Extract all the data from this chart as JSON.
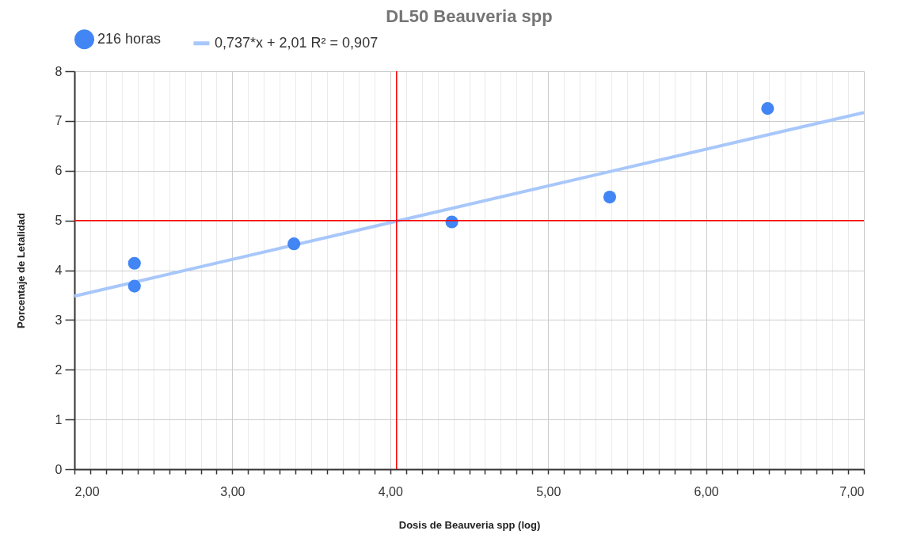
{
  "chart_data": {
    "type": "scatter",
    "title": "DL50 Beauveria spp",
    "xlabel": "Dosis de Beauveria spp (log)",
    "ylabel": "Porcentaje de Letalidad",
    "series": [
      {
        "name": "216 horas",
        "color": "#4285f4",
        "marker": "circle",
        "x": [
          2.38,
          2.38,
          3.39,
          4.39,
          5.39,
          6.39
        ],
        "values": [
          4.14,
          3.68,
          4.53,
          4.97,
          5.47,
          7.25
        ]
      },
      {
        "name": "0,737*x + 2,01 R² = 0,907",
        "type": "line",
        "color": "#a8c7fa",
        "x": [
          2,
          7
        ],
        "values": [
          3.48,
          7.17
        ]
      }
    ],
    "ref_lines": [
      {
        "axis": "y",
        "value": 5,
        "color": "#ff0000"
      },
      {
        "axis": "x",
        "value": 4.04,
        "color": "#ff0000"
      }
    ],
    "xlim": [
      2,
      7
    ],
    "ylim": [
      0,
      8
    ],
    "xticks": [
      {
        "value": 2,
        "label": "2,00"
      },
      {
        "value": 2.1,
        "label": null
      },
      {
        "value": 2.2,
        "label": null
      },
      {
        "value": 2.3,
        "label": null
      },
      {
        "value": 2.4,
        "label": null
      },
      {
        "value": 2.5,
        "label": null
      },
      {
        "value": 2.6,
        "label": null
      },
      {
        "value": 2.7,
        "label": null
      },
      {
        "value": 2.8,
        "label": null
      },
      {
        "value": 2.9,
        "label": null
      },
      {
        "value": 3,
        "label": "3,00"
      },
      {
        "value": 3.1,
        "label": null
      },
      {
        "value": 3.2,
        "label": null
      },
      {
        "value": 3.3,
        "label": null
      },
      {
        "value": 3.4,
        "label": null
      },
      {
        "value": 3.5,
        "label": null
      },
      {
        "value": 3.6,
        "label": null
      },
      {
        "value": 3.7,
        "label": null
      },
      {
        "value": 3.8,
        "label": null
      },
      {
        "value": 3.9,
        "label": null
      },
      {
        "value": 4,
        "label": "4,00"
      },
      {
        "value": 4.1,
        "label": null
      },
      {
        "value": 4.2,
        "label": null
      },
      {
        "value": 4.3,
        "label": null
      },
      {
        "value": 4.4,
        "label": null
      },
      {
        "value": 4.5,
        "label": null
      },
      {
        "value": 4.6,
        "label": null
      },
      {
        "value": 4.7,
        "label": null
      },
      {
        "value": 4.8,
        "label": null
      },
      {
        "value": 4.9,
        "label": null
      },
      {
        "value": 5,
        "label": "5,00"
      },
      {
        "value": 5.1,
        "label": null
      },
      {
        "value": 5.2,
        "label": null
      },
      {
        "value": 5.3,
        "label": null
      },
      {
        "value": 5.4,
        "label": null
      },
      {
        "value": 5.5,
        "label": null
      },
      {
        "value": 5.6,
        "label": null
      },
      {
        "value": 5.7,
        "label": null
      },
      {
        "value": 5.8,
        "label": null
      },
      {
        "value": 5.9,
        "label": null
      },
      {
        "value": 6,
        "label": "6,00"
      },
      {
        "value": 6.1,
        "label": null
      },
      {
        "value": 6.2,
        "label": null
      },
      {
        "value": 6.3,
        "label": null
      },
      {
        "value": 6.4,
        "label": null
      },
      {
        "value": 6.5,
        "label": null
      },
      {
        "value": 6.6,
        "label": null
      },
      {
        "value": 6.7,
        "label": null
      },
      {
        "value": 6.8,
        "label": null
      },
      {
        "value": 6.9,
        "label": null
      },
      {
        "value": 7,
        "label": "7,00"
      }
    ],
    "yticks": [
      0,
      1,
      2,
      3,
      4,
      5,
      6,
      7,
      8
    ],
    "grid": true,
    "legend": "top"
  }
}
